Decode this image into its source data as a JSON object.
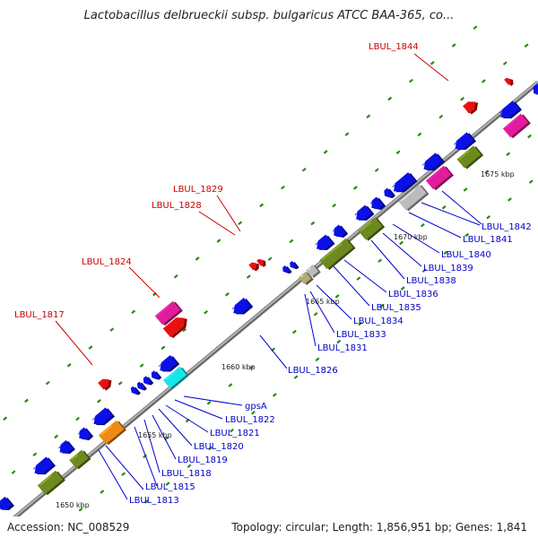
{
  "title": "Lactobacillus delbrueckii subsp. bulgaricus ATCC BAA-365, co...",
  "footer": {
    "accession": "Accession: NC_008529",
    "summary": "Topology: circular; Length: 1,856,951 bp; Genes: 1,841"
  },
  "colors": {
    "backbone": "#8c8c8c",
    "blue_gene": "#0a10e6",
    "olive_gene": "#6e8a1e",
    "magenta_gene": "#e21c9a",
    "red_gene": "#e81010",
    "cyan_gene": "#18e6e6",
    "orange_gene": "#f08a14",
    "grey_gene": "#bcbcbc",
    "tan_gene": "#b0ab74",
    "tick_dash": "#2a8a14",
    "blue_label": "#0000cc",
    "red_label": "#cc0000"
  },
  "kbp_labels": [
    "1650 kbp",
    "1655 kbp",
    "1660 kbp",
    "1665 kbp",
    "1670 kbp",
    "1675 kbp"
  ],
  "red_labels": [
    "LBUL_1817",
    "LBUL_1824",
    "LBUL_1828",
    "LBUL_1829",
    "LBUL_1844"
  ],
  "blue_labels": [
    "gpsA",
    "LBUL_1822",
    "LBUL_1821",
    "LBUL_1820",
    "LBUL_1819",
    "LBUL_1818",
    "LBUL_1815",
    "LBUL_1813",
    "LBUL_1826",
    "LBUL_1831",
    "LBUL_1833",
    "LBUL_1834",
    "LBUL_1835",
    "LBUL_1836",
    "LBUL_1838",
    "LBUL_1839",
    "LBUL_1840",
    "LBUL_1841",
    "LBUL_1842"
  ]
}
